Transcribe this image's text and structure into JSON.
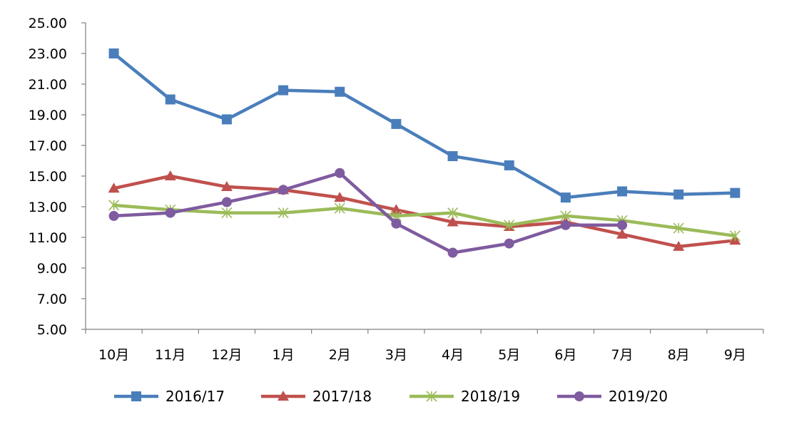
{
  "chart_data": {
    "type": "line",
    "categories": [
      "10月",
      "11月",
      "12月",
      "1月",
      "2月",
      "3月",
      "4月",
      "5月",
      "6月",
      "7月",
      "8月",
      "9月"
    ],
    "ylim": [
      5,
      25
    ],
    "y_ticks": [
      "5.00",
      "7.00",
      "9.00",
      "11.00",
      "13.00",
      "15.00",
      "17.00",
      "19.00",
      "21.00",
      "23.00",
      "25.00"
    ],
    "grid": false,
    "legend_position": "bottom",
    "series": [
      {
        "name": "2016/17",
        "color": "#4a7ebb",
        "marker": "square",
        "values": [
          23.0,
          20.0,
          18.7,
          20.6,
          20.5,
          18.4,
          16.3,
          15.7,
          13.6,
          14.0,
          13.8,
          13.9
        ]
      },
      {
        "name": "2017/18",
        "color": "#c0504d",
        "marker": "triangle",
        "values": [
          14.2,
          15.0,
          14.3,
          14.1,
          13.6,
          12.8,
          12.0,
          11.7,
          12.0,
          11.2,
          10.4,
          10.8
        ]
      },
      {
        "name": "2018/19",
        "color": "#9bbb59",
        "marker": "star",
        "values": [
          13.1,
          12.8,
          12.6,
          12.6,
          12.9,
          12.4,
          12.6,
          11.8,
          12.4,
          12.1,
          11.6,
          11.1
        ]
      },
      {
        "name": "2019/20",
        "color": "#7f5b9f",
        "marker": "circle",
        "values": [
          12.4,
          12.6,
          13.3,
          14.1,
          15.2,
          11.9,
          10.0,
          10.6,
          11.8,
          11.8,
          null,
          null
        ]
      }
    ]
  }
}
